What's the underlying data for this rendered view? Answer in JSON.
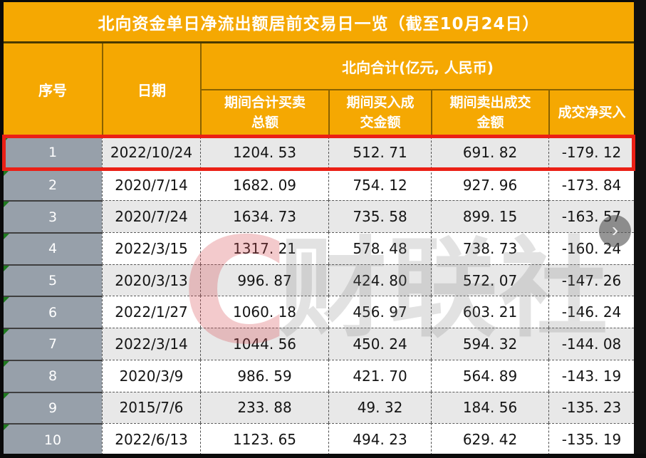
{
  "title": "北向资金单日净流出额居前交易日一览（截至10月24日）",
  "table": {
    "col_seq": "序号",
    "col_date": "日期",
    "group_header": "北向合计(亿元, 人民币)",
    "sub_headers": [
      "期间合计买卖总额",
      "期间买入成交金额",
      "期间卖出成交金额",
      "成交净买入"
    ]
  },
  "rows": [
    {
      "seq": "1",
      "date": "2022/10/24",
      "total": "1204. 53",
      "buy": "512. 71",
      "sell": "691. 82",
      "net": "-179. 12"
    },
    {
      "seq": "2",
      "date": "2020/7/14",
      "total": "1682. 09",
      "buy": "754. 12",
      "sell": "927. 96",
      "net": "-173. 84"
    },
    {
      "seq": "3",
      "date": "2020/7/24",
      "total": "1634. 73",
      "buy": "735. 58",
      "sell": "899. 15",
      "net": "-163. 57"
    },
    {
      "seq": "4",
      "date": "2022/3/15",
      "total": "1317. 21",
      "buy": "578. 48",
      "sell": "738. 73",
      "net": "-160. 24"
    },
    {
      "seq": "5",
      "date": "2020/3/13",
      "total": "996. 87",
      "buy": "424. 80",
      "sell": "572. 07",
      "net": "-147. 26"
    },
    {
      "seq": "6",
      "date": "2022/1/27",
      "total": "1060. 18",
      "buy": "456. 97",
      "sell": "603. 21",
      "net": "-146. 24"
    },
    {
      "seq": "7",
      "date": "2022/3/14",
      "total": "1044. 56",
      "buy": "450. 24",
      "sell": "594. 32",
      "net": "-144. 08"
    },
    {
      "seq": "8",
      "date": "2020/3/9",
      "total": "986. 59",
      "buy": "421. 70",
      "sell": "564. 89",
      "net": "-143. 19"
    },
    {
      "seq": "9",
      "date": "2015/7/6",
      "total": "233. 88",
      "buy": "49. 32",
      "sell": "184. 56",
      "net": "-135. 23"
    },
    {
      "seq": "10",
      "date": "2022/6/13",
      "total": "1123. 65",
      "buy": "494. 23",
      "sell": "629. 42",
      "net": "-135. 19"
    }
  ],
  "highlight": {
    "row_seq": "1"
  },
  "watermark": {
    "logo_letter": "C",
    "brand_text": "财联社"
  },
  "carousel": {
    "next_icon": "›"
  },
  "colors": {
    "header_orange": "#F5A802",
    "seq_column_gray": "#97A0AA",
    "row_alt_gray": "#E8E8E8",
    "highlight_red": "#EB2016",
    "flag_green": "#1F7A1F",
    "right_strip_black": "#101010"
  },
  "chart_data": {
    "type": "table",
    "title": "北向资金单日净流出额居前交易日一览（截至10月24日）",
    "unit_note": "北向合计(亿元, 人民币)",
    "columns": [
      "序号",
      "日期",
      "期间合计买卖总额",
      "期间买入成交金额",
      "期间卖出成交金额",
      "成交净买入"
    ],
    "rows": [
      [
        1,
        "2022/10/24",
        1204.53,
        512.71,
        691.82,
        -179.12
      ],
      [
        2,
        "2020/7/14",
        1682.09,
        754.12,
        927.96,
        -173.84
      ],
      [
        3,
        "2020/7/24",
        1634.73,
        735.58,
        899.15,
        -163.57
      ],
      [
        4,
        "2022/3/15",
        1317.21,
        578.48,
        738.73,
        -160.24
      ],
      [
        5,
        "2020/3/13",
        996.87,
        424.8,
        572.07,
        -147.26
      ],
      [
        6,
        "2022/1/27",
        1060.18,
        456.97,
        603.21,
        -146.24
      ],
      [
        7,
        "2022/3/14",
        1044.56,
        450.24,
        594.32,
        -144.08
      ],
      [
        8,
        "2020/3/9",
        986.59,
        421.7,
        564.89,
        -143.19
      ],
      [
        9,
        "2015/7/6",
        233.88,
        49.32,
        184.56,
        -135.23
      ],
      [
        10,
        "2022/6/13",
        1123.65,
        494.23,
        629.42,
        -135.19
      ]
    ],
    "highlighted_row": 1,
    "layout": {
      "alternating_rows": true,
      "header_color": "#F5A802"
    }
  }
}
